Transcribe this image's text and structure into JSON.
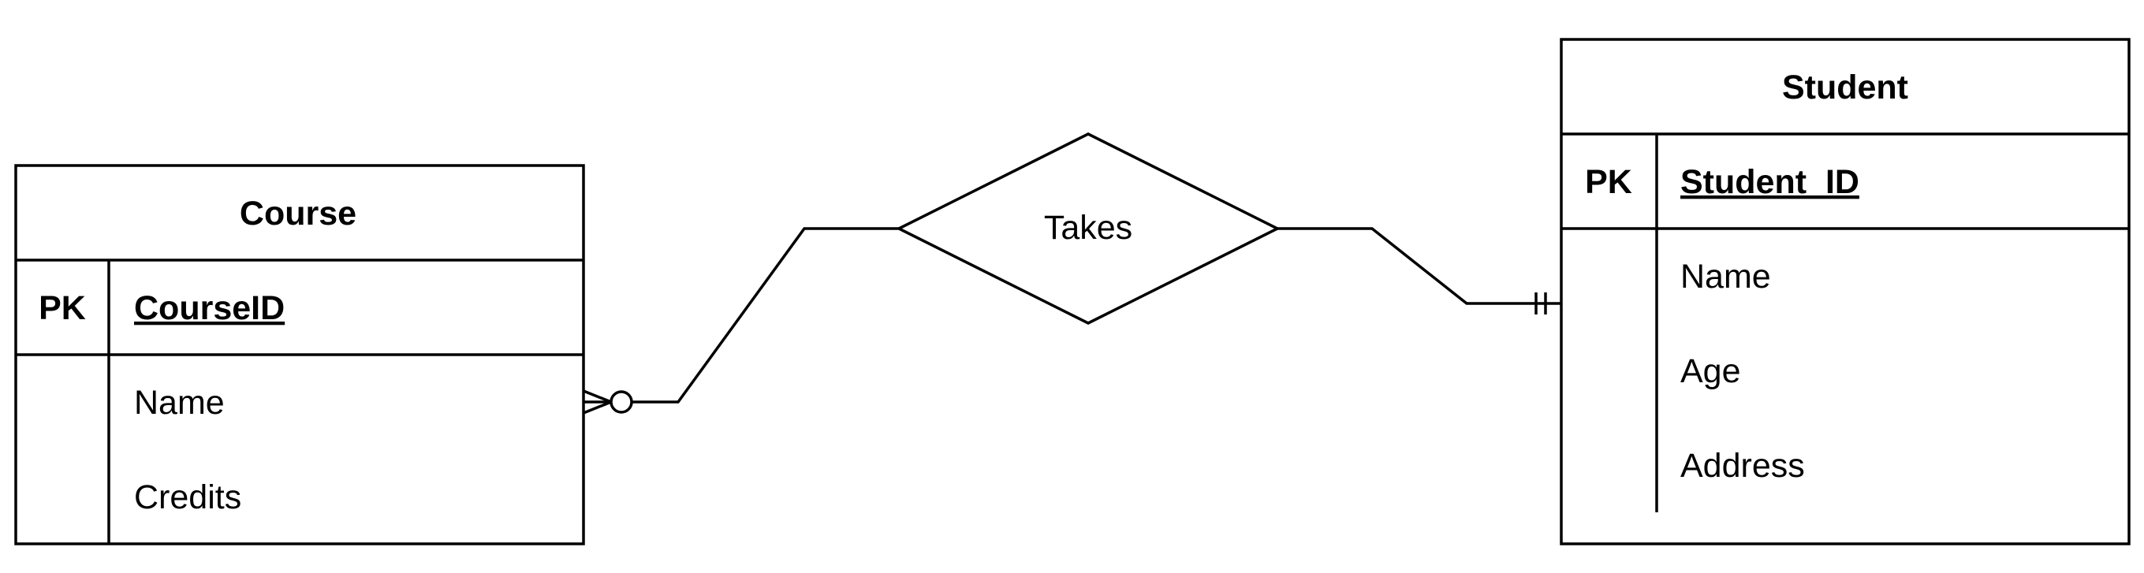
{
  "entities": {
    "course": {
      "title": "Course",
      "key_label": "PK",
      "key_field": "CourseID",
      "attributes": [
        "Name",
        "Credits"
      ]
    },
    "student": {
      "title": "Student",
      "key_label": "PK",
      "key_field": "Student_ID",
      "attributes": [
        "Name",
        "Age",
        "Address"
      ]
    }
  },
  "relationship": {
    "label": "Takes"
  },
  "cardinality": {
    "course_end": "zero-or-many",
    "student_end": "exactly-one"
  }
}
